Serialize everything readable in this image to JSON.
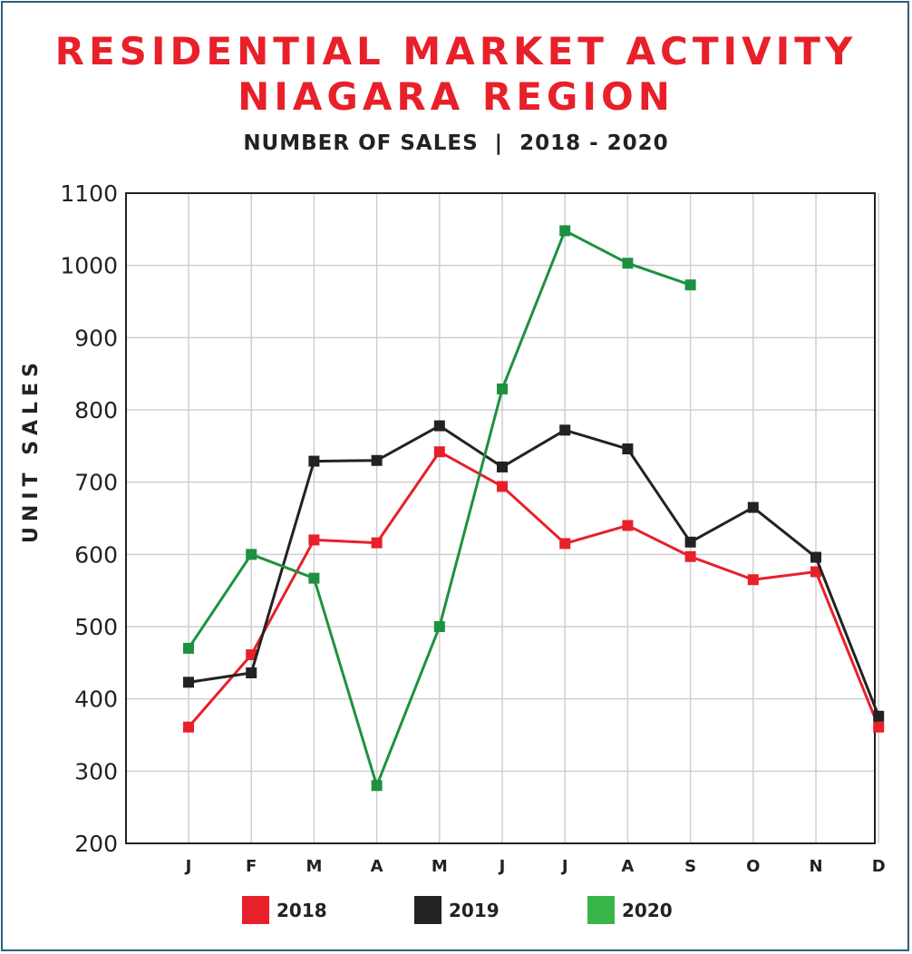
{
  "chart_data": {
    "type": "line",
    "title_line1": "RESIDENTIAL MARKET ACTIVITY",
    "title_line2": "NIAGARA REGION",
    "subtitle": "NUMBER OF SALES  |  2018 - 2020",
    "ylabel": "UNIT SALES",
    "xlabel": "",
    "ylim": [
      200,
      1100
    ],
    "yticks": [
      200,
      300,
      400,
      500,
      600,
      700,
      800,
      900,
      1000,
      1100
    ],
    "categories": [
      "J",
      "F",
      "M",
      "A",
      "M",
      "J",
      "J",
      "A",
      "S",
      "O",
      "N",
      "D"
    ],
    "grid": true,
    "legend_position": "bottom",
    "series": [
      {
        "name": "2018",
        "color": "#e8202a",
        "values": [
          361,
          461,
          620,
          616,
          742,
          694,
          615,
          640,
          597,
          565,
          576,
          361
        ]
      },
      {
        "name": "2019",
        "color": "#222222",
        "values": [
          423,
          436,
          729,
          730,
          778,
          721,
          772,
          746,
          617,
          665,
          596,
          376
        ]
      },
      {
        "name": "2020",
        "color": "#1e9140",
        "legend_color": "#3ab54a",
        "values": [
          470,
          600,
          567,
          280,
          500,
          829,
          1048,
          1003,
          973,
          null,
          null,
          null
        ]
      }
    ]
  }
}
